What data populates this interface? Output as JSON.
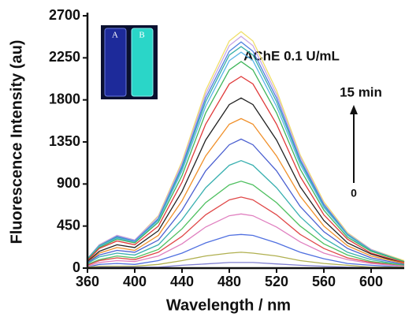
{
  "chart_data": {
    "type": "line",
    "x_label": "Wavelength / nm",
    "y_label": "Fluorescence Intensity (au)",
    "annotations": [
      "AChE 0.1 U/mL",
      "15 min",
      "0"
    ],
    "inset_labels": [
      "A",
      "B"
    ],
    "xlim": [
      360,
      628
    ],
    "xticks": [
      360,
      400,
      440,
      480,
      520,
      560,
      600
    ],
    "ylim": [
      0,
      2700
    ],
    "yticks": [
      0,
      450,
      900,
      1350,
      1800,
      2250,
      2700
    ],
    "x": [
      360,
      370,
      385,
      400,
      420,
      440,
      460,
      480,
      490,
      500,
      520,
      540,
      560,
      580,
      600,
      628
    ],
    "series": [
      {
        "color": "#f0df6a",
        "values": [
          100,
          250,
          350,
          300,
          560,
          1140,
          1900,
          2430,
          2530,
          2430,
          1900,
          1210,
          710,
          380,
          200,
          80
        ]
      },
      {
        "color": "#c7a6e6",
        "values": [
          100,
          250,
          350,
          300,
          550,
          1120,
          1860,
          2380,
          2480,
          2380,
          1860,
          1190,
          690,
          370,
          200,
          70
        ]
      },
      {
        "color": "#4f7fe0",
        "values": [
          100,
          240,
          340,
          290,
          530,
          1090,
          1820,
          2320,
          2420,
          2320,
          1820,
          1160,
          680,
          360,
          190,
          70
        ]
      },
      {
        "color": "#38b0a8",
        "values": [
          95,
          240,
          330,
          280,
          520,
          1070,
          1780,
          2280,
          2370,
          2280,
          1780,
          1140,
          660,
          360,
          190,
          70
        ]
      },
      {
        "color": "#5ab4e8",
        "values": [
          90,
          230,
          320,
          280,
          510,
          1040,
          1730,
          2220,
          2310,
          2220,
          1730,
          1110,
          650,
          350,
          180,
          70
        ]
      },
      {
        "color": "#3fb55a",
        "values": [
          90,
          220,
          310,
          270,
          490,
          990,
          1660,
          2120,
          2210,
          2120,
          1660,
          1060,
          620,
          330,
          180,
          70
        ]
      },
      {
        "color": "#e03a3a",
        "values": [
          80,
          210,
          290,
          250,
          450,
          920,
          1540,
          1970,
          2050,
          1970,
          1540,
          980,
          570,
          310,
          160,
          60
        ]
      },
      {
        "color": "#222222",
        "values": [
          70,
          180,
          250,
          220,
          400,
          820,
          1370,
          1750,
          1820,
          1750,
          1370,
          870,
          510,
          270,
          150,
          50
        ]
      },
      {
        "color": "#f0902a",
        "values": [
          60,
          160,
          220,
          190,
          350,
          720,
          1200,
          1540,
          1600,
          1540,
          1200,
          770,
          450,
          240,
          130,
          50
        ]
      },
      {
        "color": "#4a5fd0",
        "values": [
          60,
          140,
          190,
          170,
          300,
          620,
          1040,
          1320,
          1380,
          1320,
          1040,
          660,
          390,
          210,
          110,
          40
        ]
      },
      {
        "color": "#3ab0b0",
        "values": [
          50,
          120,
          160,
          140,
          250,
          520,
          860,
          1100,
          1150,
          1100,
          860,
          550,
          320,
          170,
          90,
          30
        ]
      },
      {
        "color": "#4fc060",
        "values": [
          40,
          90,
          130,
          110,
          200,
          420,
          700,
          890,
          930,
          890,
          700,
          450,
          260,
          140,
          70,
          30
        ]
      },
      {
        "color": "#e04848",
        "values": [
          30,
          80,
          110,
          90,
          170,
          340,
          570,
          730,
          760,
          730,
          570,
          360,
          210,
          110,
          60,
          20
        ]
      },
      {
        "color": "#e080c0",
        "values": [
          20,
          60,
          80,
          70,
          130,
          260,
          440,
          560,
          580,
          560,
          440,
          280,
          160,
          90,
          50,
          20
        ]
      },
      {
        "color": "#5070e0",
        "values": [
          10,
          40,
          50,
          40,
          80,
          160,
          270,
          350,
          360,
          350,
          270,
          170,
          100,
          50,
          30,
          10
        ]
      },
      {
        "color": "#b0b050",
        "values": [
          10,
          20,
          20,
          20,
          40,
          80,
          130,
          160,
          170,
          160,
          130,
          80,
          50,
          30,
          10,
          10
        ]
      },
      {
        "color": "#8080d0",
        "values": [
          0,
          10,
          10,
          10,
          10,
          30,
          45,
          60,
          60,
          60,
          45,
          30,
          20,
          10,
          5,
          0
        ]
      }
    ]
  }
}
